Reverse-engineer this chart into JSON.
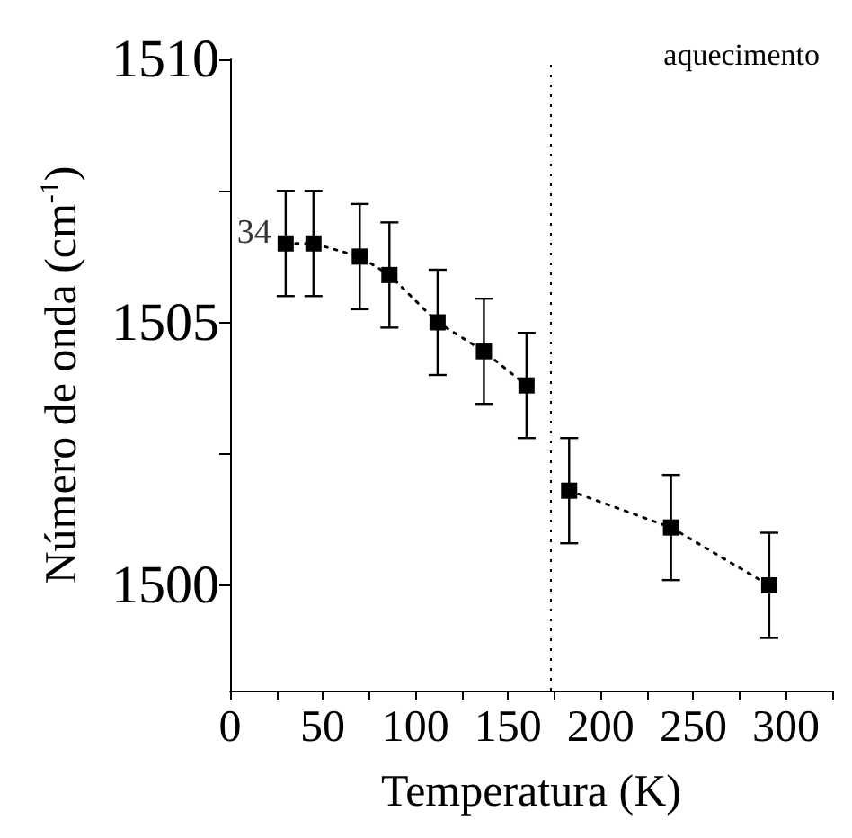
{
  "chart_data": {
    "type": "line",
    "xlabel": "Temperatura (K)",
    "ylabel": "Número de onda (cm$^{-1}$)",
    "series": [
      {
        "color": "#000000",
        "x": [
          30,
          45,
          70,
          86,
          112,
          137,
          160
        ],
        "values": [
          1506.5,
          1506.5,
          1506.25,
          1505.9,
          1505.0,
          1504.45,
          1503.8
        ],
        "errors": [
          1,
          1,
          1,
          1,
          1,
          1,
          1
        ]
      },
      {
        "color": "#000000",
        "x": [
          183,
          238,
          291
        ],
        "values": [
          1501.8,
          1501.1,
          1500.0
        ],
        "errors": [
          1,
          1,
          1
        ]
      }
    ],
    "xlim": [
      0,
      325
    ],
    "xticks": [
      0,
      {
        "value": 25,
        "label": null
      },
      50,
      {
        "value": 75,
        "label": null
      },
      100,
      {
        "value": 125,
        "label": null
      },
      150,
      {
        "value": 175,
        "label": null
      },
      200,
      {
        "value": 225,
        "label": null
      },
      250,
      {
        "value": 275,
        "label": null
      },
      300,
      {
        "value": 325,
        "label": null
      }
    ],
    "ylim": [
      1498,
      1510
    ],
    "yticks": [
      1500,
      {
        "value": 1502.5,
        "label": null
      },
      1505,
      {
        "value": 1507.5,
        "label": null
      },
      1510
    ],
    "ref_lines": [
      {
        "axis": "x",
        "value": 172.5,
        "line_style": "dotted",
        "color": "#000000"
      }
    ],
    "annotations": [
      {
        "text": "34",
        "x": 30,
        "y": 1506.5
      },
      "aquecimento"
    ],
    "marker": "square",
    "line_style": "dotted"
  }
}
